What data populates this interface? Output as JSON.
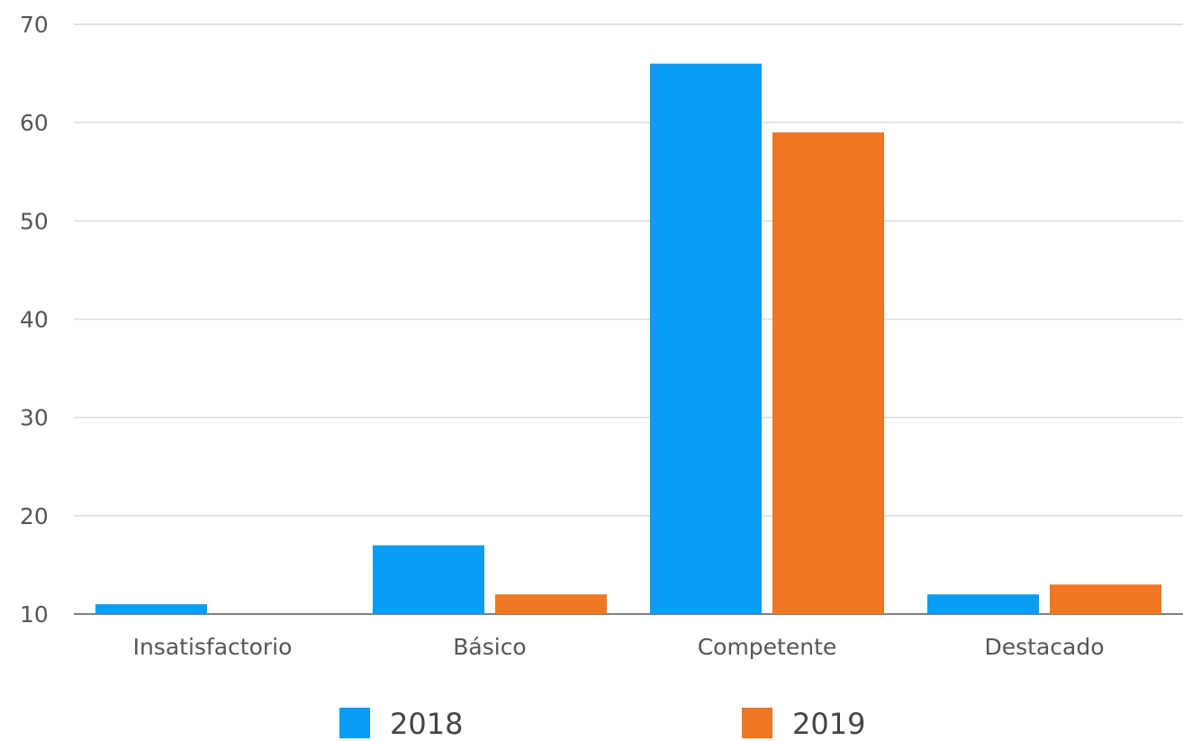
{
  "chart_data": {
    "type": "bar",
    "categories": [
      "Insatisfactorio",
      "Básico",
      "Competente",
      "Destacado"
    ],
    "series": [
      {
        "name": "2018",
        "color": "#0a9cf2",
        "values": [
          11,
          17,
          66,
          12
        ]
      },
      {
        "name": "2019",
        "color": "#ef7622",
        "values": [
          10,
          12,
          59,
          13
        ]
      }
    ],
    "ylim": [
      10,
      70
    ],
    "yticks": [
      10,
      20,
      30,
      40,
      50,
      60,
      70
    ],
    "grid": true,
    "legend": "bottom"
  }
}
